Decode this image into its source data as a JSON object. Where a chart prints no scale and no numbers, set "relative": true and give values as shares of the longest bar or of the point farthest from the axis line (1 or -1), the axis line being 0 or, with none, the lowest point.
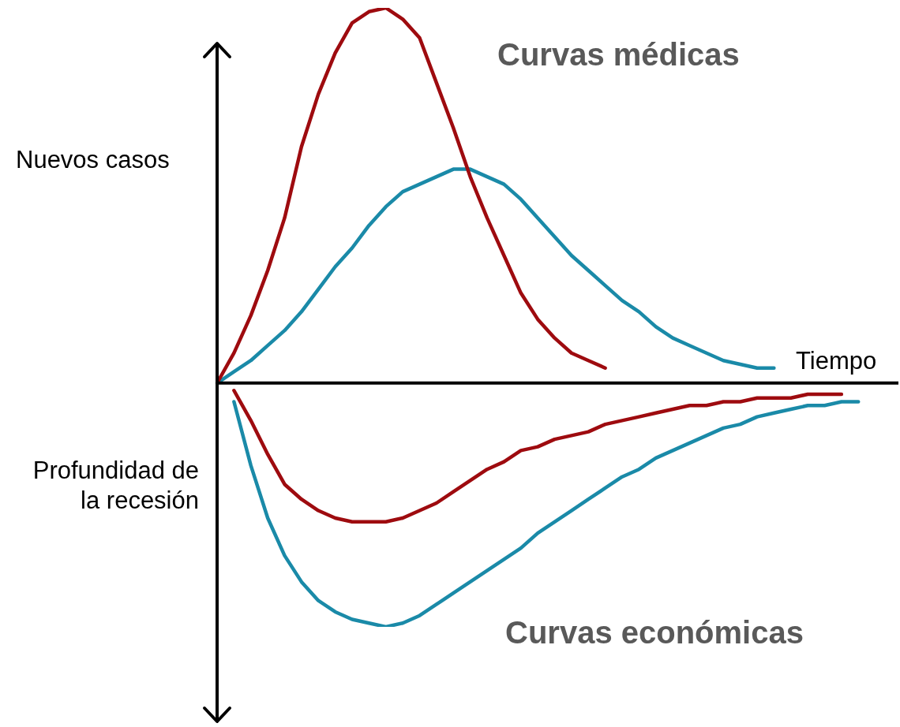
{
  "chart_data": {
    "type": "line",
    "relative": true,
    "ylabel": "Nuevos casos",
    "xlabel": "Tiempo",
    "annotations": [
      "Curvas médicas",
      "Profundidad de la recesión",
      "Curvas económicas"
    ],
    "grid": false,
    "legend": false,
    "marker": "none",
    "line_style": "solid",
    "categories": [
      null,
      null,
      null,
      null,
      null,
      null,
      null,
      null,
      null,
      null,
      null,
      null,
      null,
      null,
      null,
      null,
      null,
      null,
      null,
      null,
      null,
      null,
      null,
      null,
      null,
      null,
      null,
      null,
      null,
      null,
      null,
      null,
      null,
      null,
      null,
      null,
      null,
      null,
      null,
      null,
      null
    ],
    "series": [
      {
        "color": "#9e0b0f",
        "values": [
          0,
          0.08,
          0.18,
          0.3,
          0.44,
          0.63,
          0.77,
          0.88,
          0.96,
          0.99,
          1,
          0.97,
          0.92,
          0.8,
          0.68,
          0.55,
          0.44,
          0.34,
          0.24,
          0.17,
          0.12,
          0.08,
          0.06,
          0.04,
          null,
          null,
          null,
          null,
          null,
          null,
          null,
          null,
          null,
          null,
          null,
          null,
          null,
          null,
          null,
          null,
          null
        ]
      },
      {
        "color": "#1a8aa8",
        "values": [
          0,
          0.03,
          0.06,
          0.1,
          0.14,
          0.19,
          0.25,
          0.31,
          0.36,
          0.42,
          0.47,
          0.51,
          0.53,
          0.55,
          0.57,
          0.57,
          0.55,
          0.53,
          0.49,
          0.44,
          0.39,
          0.34,
          0.3,
          0.26,
          0.22,
          0.19,
          0.15,
          0.12,
          0.1,
          0.08,
          0.06,
          0.05,
          0.04,
          0.04,
          null,
          null,
          null,
          null,
          null,
          null,
          null
        ]
      },
      {
        "color": "#9e0b0f",
        "values": [
          null,
          -0.02,
          -0.1,
          -0.19,
          -0.27,
          -0.31,
          -0.34,
          -0.36,
          -0.37,
          -0.37,
          -0.37,
          -0.36,
          -0.34,
          -0.32,
          -0.29,
          -0.26,
          -0.23,
          -0.21,
          -0.18,
          -0.17,
          -0.15,
          -0.14,
          -0.13,
          -0.11,
          -0.1,
          -0.09,
          -0.08,
          -0.07,
          -0.06,
          -0.06,
          -0.05,
          -0.05,
          -0.04,
          -0.04,
          -0.04,
          -0.03,
          -0.03,
          -0.03,
          null,
          null,
          null
        ]
      },
      {
        "color": "#1a8aa8",
        "values": [
          null,
          -0.05,
          -0.22,
          -0.36,
          -0.46,
          -0.53,
          -0.58,
          -0.61,
          -0.63,
          -0.64,
          -0.65,
          -0.64,
          -0.62,
          -0.59,
          -0.56,
          -0.53,
          -0.5,
          -0.47,
          -0.44,
          -0.4,
          -0.37,
          -0.34,
          -0.31,
          -0.28,
          -0.25,
          -0.23,
          -0.2,
          -0.18,
          -0.16,
          -0.14,
          -0.12,
          -0.11,
          -0.09,
          -0.08,
          -0.07,
          -0.06,
          -0.06,
          -0.05,
          -0.05,
          null,
          null
        ]
      }
    ]
  }
}
